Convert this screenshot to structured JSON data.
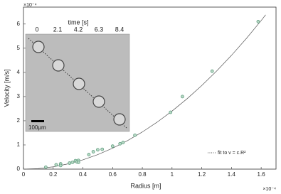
{
  "chart_data": {
    "type": "scatter",
    "x_label": "Radius [m]",
    "y_label": "Velocity [m/s]",
    "x_exponent_label": "×10⁻⁴",
    "y_exponent_label": "×10⁻⁴",
    "xlim": [
      0,
      1.7
    ],
    "ylim": [
      0,
      6.7
    ],
    "xticks": [
      0,
      0.2,
      0.4,
      0.6,
      0.8,
      1,
      1.2,
      1.4,
      1.6
    ],
    "yticks": [
      0,
      1,
      2,
      3,
      4,
      5,
      6
    ],
    "series": [
      {
        "type": "scatter",
        "color": "#5e9e7e",
        "x": [
          0.15,
          0.22,
          0.25,
          0.25,
          0.31,
          0.33,
          0.35,
          0.36,
          0.37,
          0.37,
          0.44,
          0.47,
          0.5,
          0.53,
          0.6,
          0.65,
          0.67,
          0.75,
          0.99,
          1.07,
          1.27,
          1.58
        ],
        "values": [
          0.08,
          0.18,
          0.22,
          0.15,
          0.25,
          0.28,
          0.35,
          0.3,
          0.36,
          0.28,
          0.6,
          0.72,
          0.8,
          0.82,
          0.95,
          1.05,
          1.1,
          1.4,
          2.35,
          3.0,
          4.05,
          6.1
        ]
      },
      {
        "type": "line",
        "name": "fit to v = c.R²",
        "color": "#555555",
        "x": [
          0,
          0.1,
          0.2,
          0.3,
          0.4,
          0.5,
          0.6,
          0.7,
          0.8,
          0.9,
          1.0,
          1.1,
          1.2,
          1.3,
          1.4,
          1.5,
          1.6,
          1.63
        ],
        "values": [
          0,
          0.024,
          0.096,
          0.216,
          0.384,
          0.6,
          0.864,
          1.176,
          1.536,
          1.944,
          2.4,
          2.904,
          3.456,
          4.056,
          4.704,
          5.4,
          6.144,
          6.38
        ]
      }
    ],
    "inset": {
      "title": "time [s]",
      "xticks": [
        0,
        2.1,
        4.2,
        6.3,
        8.4
      ],
      "scale_label": "100μm"
    }
  }
}
